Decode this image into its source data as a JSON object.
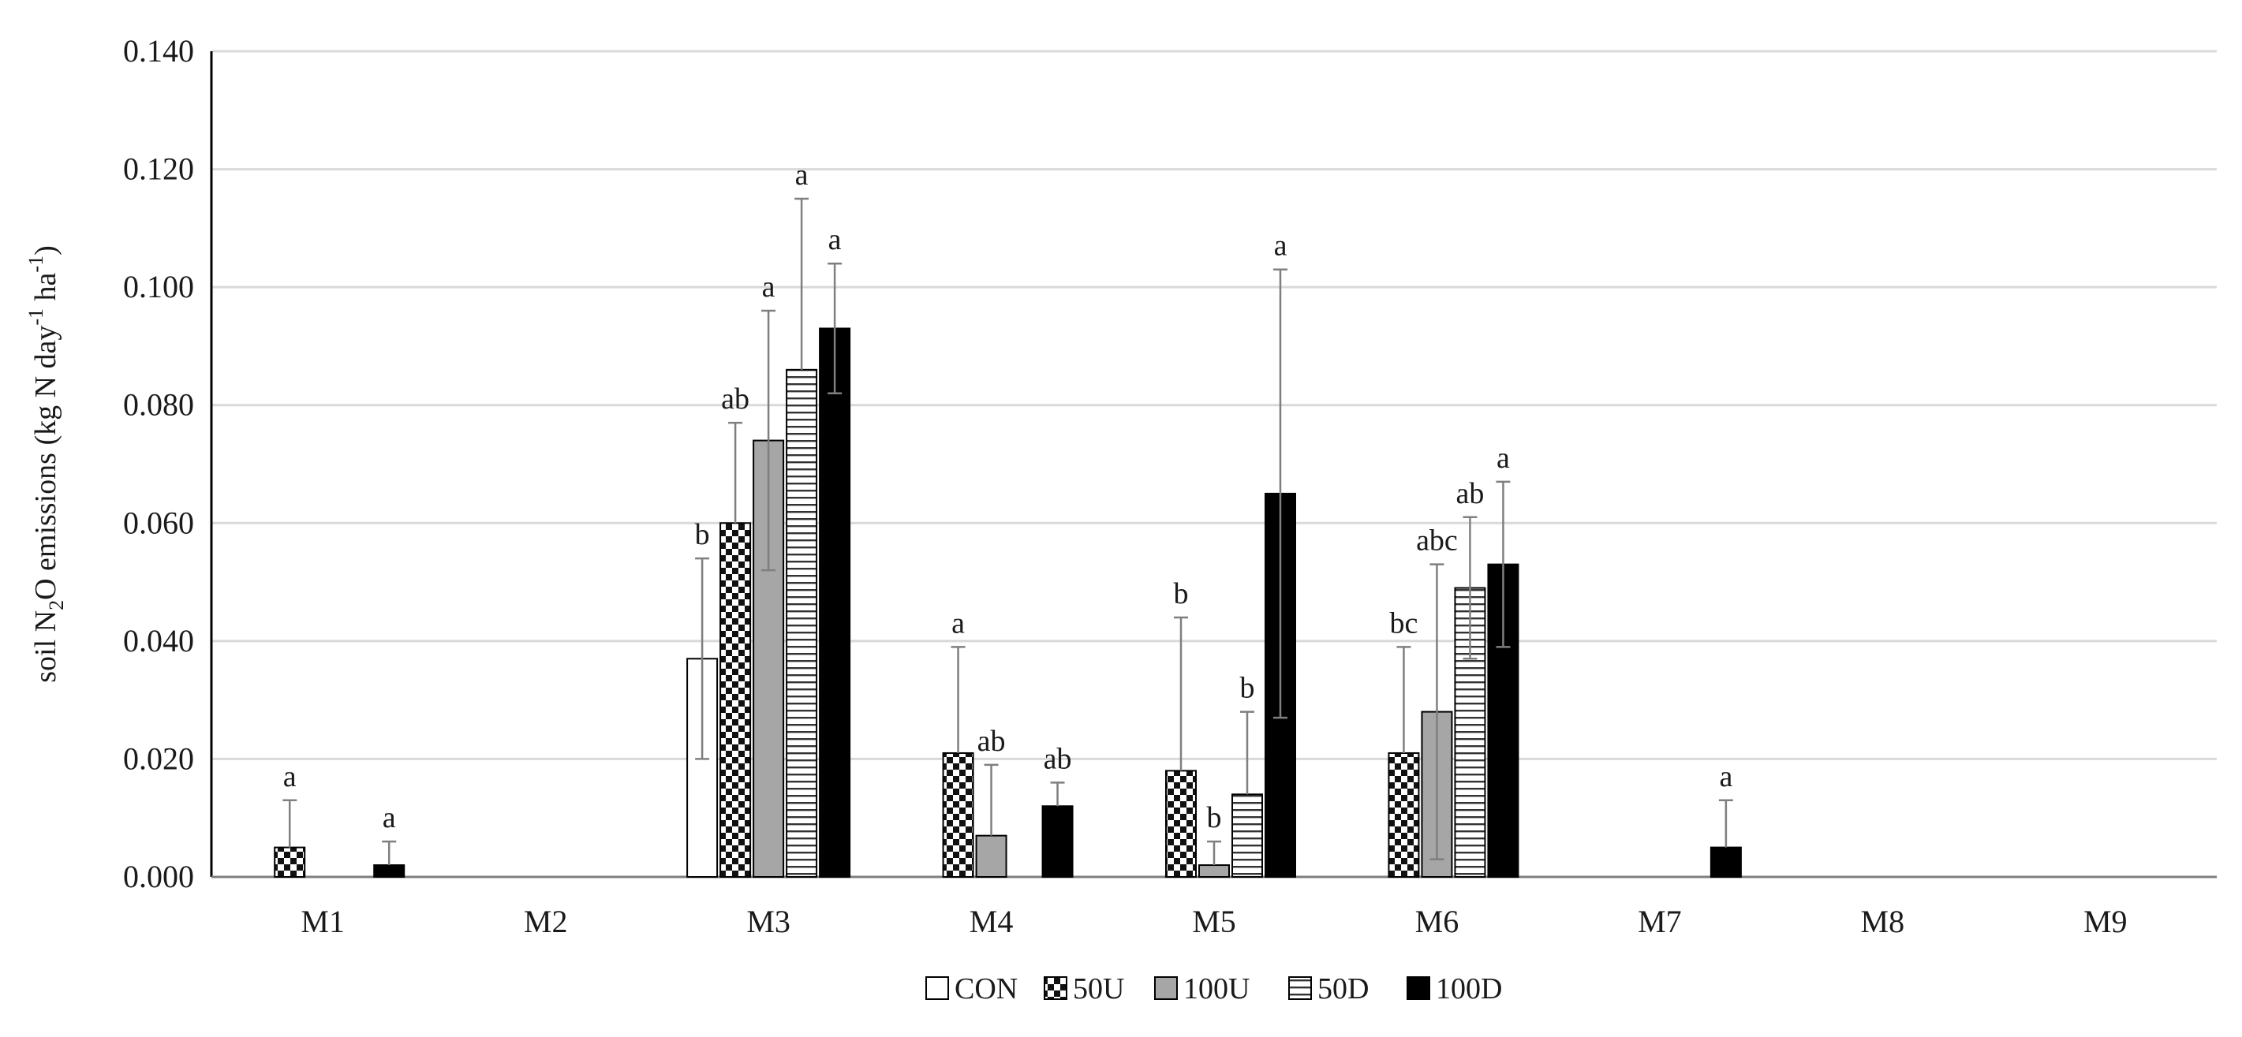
{
  "chart_data": {
    "type": "bar",
    "title": "",
    "ylabel": {
      "prefix": "soil N",
      "sub": "2",
      "mid": "O emissions (kg N day",
      "sup1": "-1",
      "mid2": " ha",
      "sup2": "-1",
      "suffix": ")"
    },
    "xlabel": "",
    "ylim": [
      0,
      0.14
    ],
    "yticks": [
      "0.000",
      "0.020",
      "0.040",
      "0.060",
      "0.080",
      "0.100",
      "0.120",
      "0.140"
    ],
    "ytick_values": [
      0,
      0.02,
      0.04,
      0.06,
      0.08,
      0.1,
      0.12,
      0.14
    ],
    "grid": true,
    "legend_position": "bottom-center",
    "categories": [
      "M1",
      "M2",
      "M3",
      "M4",
      "M5",
      "M6",
      "M7",
      "M8",
      "M9"
    ],
    "series": [
      {
        "name": "CON",
        "pattern": "none",
        "values": [
          0,
          0,
          0.037,
          0,
          0,
          0,
          0,
          0,
          0
        ],
        "error_upper": [
          null,
          null,
          0.054,
          null,
          null,
          null,
          null,
          null,
          null
        ],
        "error_lower": [
          null,
          null,
          0.02,
          null,
          null,
          null,
          null,
          null,
          null
        ],
        "labels": [
          "",
          "",
          "b",
          "",
          "",
          "",
          "",
          "",
          ""
        ]
      },
      {
        "name": "50U",
        "pattern": "checker",
        "values": [
          0.005,
          0,
          0.06,
          0.021,
          0.018,
          0.021,
          0,
          0,
          0
        ],
        "error_upper": [
          0.013,
          null,
          0.077,
          0.039,
          0.044,
          0.039,
          null,
          null,
          null
        ],
        "error_lower": [
          null,
          null,
          null,
          null,
          null,
          null,
          null,
          null,
          null
        ],
        "labels": [
          "a",
          "",
          "ab",
          "a",
          "b",
          "bc",
          "",
          "",
          ""
        ]
      },
      {
        "name": "100U",
        "pattern": "gray",
        "values": [
          0,
          0,
          0.074,
          0.007,
          0.002,
          0.028,
          0,
          0,
          0
        ],
        "error_upper": [
          null,
          null,
          0.096,
          0.019,
          0.006,
          0.053,
          null,
          null,
          null
        ],
        "error_lower": [
          null,
          null,
          0.052,
          null,
          null,
          0.003,
          null,
          null,
          null
        ],
        "labels": [
          "",
          "",
          "a",
          "ab",
          "b",
          "abc",
          "",
          "",
          ""
        ]
      },
      {
        "name": "50D",
        "pattern": "hstripe",
        "values": [
          0,
          0,
          0.086,
          0,
          0.014,
          0.049,
          0,
          0,
          0
        ],
        "error_upper": [
          null,
          null,
          0.115,
          null,
          0.028,
          0.061,
          null,
          null,
          null
        ],
        "error_lower": [
          null,
          null,
          null,
          null,
          null,
          0.037,
          null,
          null,
          null
        ],
        "labels": [
          "",
          "",
          "a",
          "",
          "b",
          "ab",
          "",
          "",
          ""
        ]
      },
      {
        "name": "100D",
        "pattern": "black",
        "values": [
          0.002,
          0,
          0.093,
          0.012,
          0.065,
          0.053,
          0.005,
          0,
          0
        ],
        "error_upper": [
          0.006,
          null,
          0.104,
          0.016,
          0.103,
          0.067,
          0.013,
          null,
          null
        ],
        "error_lower": [
          null,
          null,
          0.082,
          null,
          0.027,
          0.039,
          null,
          null,
          null
        ],
        "labels": [
          "a",
          "",
          "a",
          "ab",
          "a",
          "a",
          "a",
          "",
          ""
        ]
      }
    ]
  }
}
